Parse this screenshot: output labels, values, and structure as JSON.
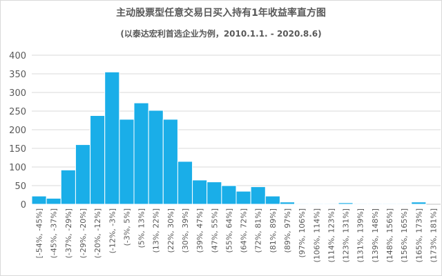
{
  "chart_data": {
    "type": "bar",
    "title": "主动股票型任意交易日买入持有1年收益率直方图",
    "subtitle": "(以泰达宏利首选企业为例，2010.1.1. - 2020.8.6)",
    "xlabel": "",
    "ylabel": "",
    "ylim": [
      0,
      400
    ],
    "yticks": [
      "0",
      "50",
      "100",
      "150",
      "200",
      "250",
      "300",
      "350",
      "400"
    ],
    "grid": true,
    "bar_color": "#1aaee8",
    "categories": [
      "[-54%, -45%]",
      "(-45%, -37%]",
      "(-37%, -29%]",
      "(-29%, -20%]",
      "(-20%, -12%]",
      "(-12%, -3%]",
      "(-3%, 5%]",
      "(5%, 13%]",
      "(13%, 22%]",
      "(22%, 30%]",
      "(30%, 39%]",
      "(39%, 47%]",
      "(47%, 55%]",
      "(55%, 64%]",
      "(64%, 72%]",
      "(72%, 81%]",
      "(81%, 89%]",
      "(89%, 97%]",
      "(97%, 106%]",
      "(106%, 114%]",
      "(114%, 123%]",
      "(123%, 131%]",
      "(131%, 139%]",
      "(139%, 148%]",
      "(148%, 156%]",
      "(156%, 165%]",
      "(165%, 173%]",
      "(173%, 181%]"
    ],
    "values": [
      22,
      16,
      92,
      160,
      238,
      355,
      228,
      272,
      252,
      228,
      115,
      65,
      60,
      50,
      35,
      47,
      22,
      6,
      2,
      2,
      2,
      4,
      2,
      2,
      2,
      2,
      6,
      0
    ]
  }
}
